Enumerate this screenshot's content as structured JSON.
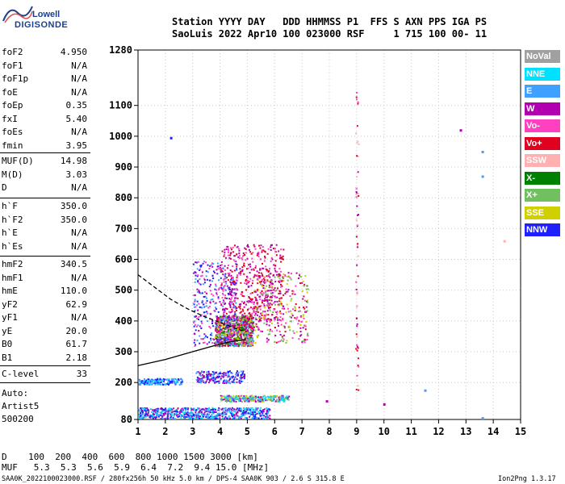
{
  "logo": {
    "line1": "Lowell",
    "line2": "DIGISONDE"
  },
  "header": {
    "line1": "Station YYYY DAY   DDD HHMMSS P1  FFS S AXN PPS IGA PS",
    "line2": "SaoLuis 2022 Apr10 100 023000 RSF     1 715 100 00- 11"
  },
  "params": [
    {
      "name": "foF2",
      "value": "4.950"
    },
    {
      "name": "foF1",
      "value": "N/A"
    },
    {
      "name": "foF1p",
      "value": "N/A"
    },
    {
      "name": "foE",
      "value": "N/A"
    },
    {
      "name": "foEp",
      "value": "0.35"
    },
    {
      "name": "fxI",
      "value": "5.40"
    },
    {
      "name": "foEs",
      "value": "N/A"
    },
    {
      "name": "fmin",
      "value": "3.95"
    },
    {
      "name": "MUF(D)",
      "value": "14.98"
    },
    {
      "name": "M(D)",
      "value": "3.03"
    },
    {
      "name": "D",
      "value": "N/A"
    },
    {
      "name": "h`F",
      "value": "350.0"
    },
    {
      "name": "h`F2",
      "value": "350.0"
    },
    {
      "name": "h`E",
      "value": "N/A"
    },
    {
      "name": "h`Es",
      "value": "N/A"
    },
    {
      "name": "hmF2",
      "value": "340.5"
    },
    {
      "name": "hmF1",
      "value": "N/A"
    },
    {
      "name": "hmE",
      "value": "110.0"
    },
    {
      "name": "yF2",
      "value": "62.9"
    },
    {
      "name": "yF1",
      "value": "N/A"
    },
    {
      "name": "yE",
      "value": "20.0"
    },
    {
      "name": "B0",
      "value": "61.7"
    },
    {
      "name": "B1",
      "value": "2.18"
    },
    {
      "name": "C-level",
      "value": "33"
    }
  ],
  "auto": {
    "line1": "Auto:",
    "line2": "Artist5",
    "line3": "500200"
  },
  "legend": [
    {
      "label": "NoVal",
      "color": "#a0a0a0"
    },
    {
      "label": "NNE",
      "color": "#00e0ff"
    },
    {
      "label": "E",
      "color": "#40a0ff"
    },
    {
      "label": "W",
      "color": "#b000b0"
    },
    {
      "label": "Vo-",
      "color": "#ff40c0"
    },
    {
      "label": "Vo+",
      "color": "#e00020"
    },
    {
      "label": "SSW",
      "color": "#ffb0b0"
    },
    {
      "label": "X-",
      "color": "#008000"
    },
    {
      "label": "X+",
      "color": "#70c060"
    },
    {
      "label": "SSE",
      "color": "#d0d000"
    },
    {
      "label": "NNW",
      "color": "#2020ff"
    }
  ],
  "footer": {
    "d_line": "D    100  200  400  600  800 1000 1500 3000 [km]",
    "muf_line": "MUF   5.3  5.3  5.6  5.9  6.4  7.2  9.4 15.0 [MHz]",
    "info_line": "SAA0K_2022100023000.RSF / 280fx256h 50 kHz 5.0 km / DPS-4 SAA0K 903 / 2.6 S 315.8 E",
    "version": "Ion2Png 1.3.17"
  },
  "chart_data": {
    "type": "scatter",
    "xlabel": "",
    "ylabel": "",
    "xlim": [
      1,
      15
    ],
    "ylim": [
      80,
      1280
    ],
    "x_ticks": [
      1,
      2,
      3,
      4,
      5,
      6,
      7,
      8,
      9,
      10,
      11,
      12,
      13,
      14,
      15
    ],
    "y_ticks": [
      80,
      200,
      300,
      400,
      500,
      600,
      700,
      800,
      900,
      1000,
      1100,
      1280
    ],
    "grid": true,
    "clusters": [
      {
        "name": "F2 trace main",
        "x": [
          3.8,
          5.2
        ],
        "y": [
          320,
          420
        ],
        "n": 900,
        "colors": [
          "#b000b0",
          "#ff40c0",
          "#e00020",
          "#d0d000",
          "#70c060",
          "#40a0ff",
          "#008000"
        ]
      },
      {
        "name": "F2 trace upper",
        "x": [
          4.0,
          6.3
        ],
        "y": [
          400,
          650
        ],
        "n": 500,
        "colors": [
          "#b000b0",
          "#ff40c0",
          "#e00020"
        ]
      },
      {
        "name": "F2 spread",
        "x": [
          3.0,
          4.6
        ],
        "y": [
          320,
          600
        ],
        "n": 350,
        "colors": [
          "#b000b0",
          "#ff40c0",
          "#2020ff",
          "#40a0ff"
        ]
      },
      {
        "name": "F2 extension",
        "x": [
          5.2,
          7.2
        ],
        "y": [
          330,
          560
        ],
        "n": 300,
        "colors": [
          "#b000b0",
          "#ff40c0",
          "#e00020",
          "#d0d000",
          "#70c060"
        ]
      },
      {
        "name": "lower layer",
        "x": [
          3.1,
          4.9
        ],
        "y": [
          200,
          240
        ],
        "n": 200,
        "colors": [
          "#b000b0",
          "#40a0ff",
          "#2020ff"
        ]
      },
      {
        "name": "low band",
        "x": [
          1.0,
          2.6
        ],
        "y": [
          195,
          215
        ],
        "n": 160,
        "colors": [
          "#2020ff",
          "#40a0ff",
          "#00e0ff"
        ]
      },
      {
        "name": "bottom band",
        "x": [
          1.0,
          5.8
        ],
        "y": [
          85,
          120
        ],
        "n": 650,
        "colors": [
          "#2020ff",
          "#40a0ff",
          "#00e0ff",
          "#b000b0"
        ]
      },
      {
        "name": "E region band",
        "x": [
          4.0,
          6.5
        ],
        "y": [
          140,
          160
        ],
        "n": 260,
        "colors": [
          "#40a0ff",
          "#00e0ff",
          "#d0d000",
          "#70c060",
          "#b000b0"
        ]
      },
      {
        "name": "interference 9 MHz",
        "x": [
          8.95,
          9.05
        ],
        "y": [
          170,
          1150
        ],
        "n": 60,
        "colors": [
          "#ffb0b0",
          "#e00020",
          "#ff40c0",
          "#b000b0"
        ]
      }
    ],
    "isolated_points": [
      {
        "x": 2.2,
        "y": 995,
        "color": "#2020ff"
      },
      {
        "x": 12.8,
        "y": 1020,
        "color": "#b000b0"
      },
      {
        "x": 13.6,
        "y": 950,
        "color": "#40a0ff"
      },
      {
        "x": 13.6,
        "y": 870,
        "color": "#40a0ff"
      },
      {
        "x": 14.4,
        "y": 660,
        "color": "#ffb0b0"
      },
      {
        "x": 11.5,
        "y": 175,
        "color": "#40a0ff"
      },
      {
        "x": 10.0,
        "y": 130,
        "color": "#b000b0"
      },
      {
        "x": 13.6,
        "y": 85,
        "color": "#40a0ff"
      },
      {
        "x": 7.9,
        "y": 140,
        "color": "#b000b0"
      }
    ],
    "profile_solid": {
      "x": [
        1.0,
        2.0,
        3.0,
        3.8,
        4.4,
        4.95
      ],
      "y": [
        255,
        275,
        300,
        320,
        333,
        340
      ]
    },
    "profile_dashed": {
      "x": [
        1.0,
        1.6,
        2.2,
        2.8,
        3.4,
        4.0,
        4.6,
        4.95
      ],
      "y": [
        550,
        510,
        470,
        440,
        415,
        395,
        375,
        365
      ]
    }
  }
}
